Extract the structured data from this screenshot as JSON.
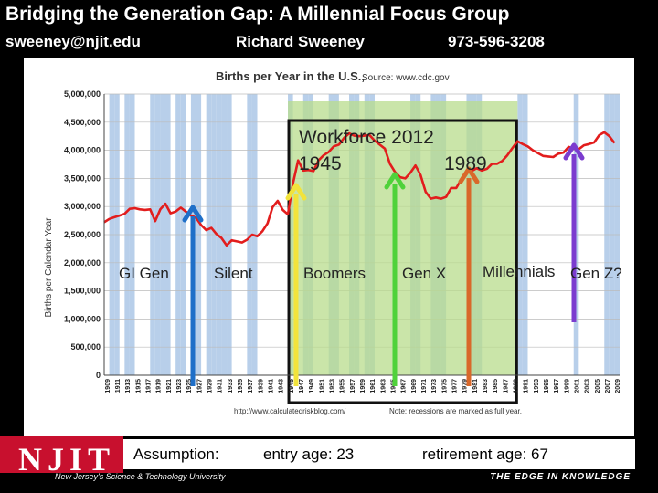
{
  "header": {
    "title": "Bridging the Generation Gap: A Millennial Focus Group",
    "email": "sweeney@njit.edu",
    "name": "Richard Sweeney",
    "phone": "973-596-3208"
  },
  "chart_data": {
    "type": "line",
    "title": "Births per Year in the U.S.,",
    "source": "Source: www.cdc.gov",
    "ylabel": "Births per Calendar Year",
    "xlabel": "",
    "ylim": [
      0,
      5000000
    ],
    "yticks": [
      "0",
      "500,000",
      "1,000,000",
      "1,500,000",
      "2,000,000",
      "2,500,000",
      "3,000,000",
      "3,500,000",
      "4,000,000",
      "4,500,000",
      "5,000,000"
    ],
    "xticks": [
      "1909",
      "1911",
      "1913",
      "1915",
      "1917",
      "1919",
      "1921",
      "1923",
      "1925",
      "1927",
      "1929",
      "1931",
      "1933",
      "1935",
      "1937",
      "1939",
      "1941",
      "1943",
      "1945",
      "1947",
      "1949",
      "1951",
      "1953",
      "1955",
      "1957",
      "1959",
      "1961",
      "1963",
      "1965",
      "1967",
      "1969",
      "1971",
      "1973",
      "1975",
      "1977",
      "1979",
      "1981",
      "1983",
      "1985",
      "1987",
      "1989",
      "1991",
      "1993",
      "1995",
      "1997",
      "1999",
      "2001",
      "2003",
      "2005",
      "2007",
      "2009"
    ],
    "footnote_left": "http://www.calculatedriskblog.com/",
    "footnote_right": "Note: recessions are marked as full year.",
    "grid": true,
    "series": [
      {
        "color": "#e21d1d",
        "x": [
          1909,
          1910,
          1911,
          1912,
          1913,
          1914,
          1915,
          1916,
          1917,
          1918,
          1919,
          1920,
          1921,
          1922,
          1923,
          1924,
          1925,
          1926,
          1927,
          1928,
          1929,
          1930,
          1931,
          1932,
          1933,
          1934,
          1935,
          1936,
          1937,
          1938,
          1939,
          1940,
          1941,
          1942,
          1943,
          1944,
          1945,
          1946,
          1947,
          1948,
          1949,
          1950,
          1951,
          1952,
          1953,
          1954,
          1955,
          1956,
          1957,
          1958,
          1959,
          1960,
          1961,
          1962,
          1963,
          1964,
          1965,
          1966,
          1967,
          1968,
          1969,
          1970,
          1971,
          1972,
          1973,
          1974,
          1975,
          1976,
          1977,
          1978,
          1979,
          1980,
          1981,
          1982,
          1983,
          1984,
          1985,
          1986,
          1987,
          1988,
          1989,
          1990,
          1991,
          1992,
          1993,
          1994,
          1995,
          1996,
          1997,
          1998,
          1999,
          2000,
          2001,
          2002,
          2003,
          2004,
          2005,
          2006,
          2007,
          2008,
          2009
        ],
        "values": [
          2720000,
          2780000,
          2810000,
          2840000,
          2870000,
          2960000,
          2970000,
          2950000,
          2940000,
          2950000,
          2740000,
          2950000,
          3050000,
          2880000,
          2910000,
          2980000,
          2910000,
          2840000,
          2800000,
          2670000,
          2580000,
          2620000,
          2510000,
          2440000,
          2310000,
          2400000,
          2380000,
          2360000,
          2410000,
          2500000,
          2470000,
          2560000,
          2700000,
          2990000,
          3100000,
          2940000,
          2860000,
          3410000,
          3820000,
          3640000,
          3650000,
          3630000,
          3820000,
          3910000,
          3970000,
          4070000,
          4100000,
          4220000,
          4300000,
          4260000,
          4250000,
          4260000,
          4270000,
          4170000,
          4100000,
          4030000,
          3760000,
          3610000,
          3520000,
          3500000,
          3600000,
          3730000,
          3560000,
          3260000,
          3140000,
          3160000,
          3140000,
          3170000,
          3330000,
          3330000,
          3490000,
          3610000,
          3630000,
          3680000,
          3640000,
          3670000,
          3760000,
          3760000,
          3810000,
          3910000,
          4040000,
          4160000,
          4110000,
          4070000,
          4000000,
          3950000,
          3900000,
          3890000,
          3880000,
          3940000,
          3960000,
          4060000,
          4030000,
          4020000,
          4090000,
          4110000,
          4140000,
          4270000,
          4320000,
          4250000,
          4130000
        ]
      }
    ],
    "recessions": [
      1910,
      1911,
      1913,
      1914,
      1918,
      1919,
      1920,
      1921,
      1923,
      1924,
      1926,
      1927,
      1929,
      1930,
      1931,
      1932,
      1933,
      1937,
      1938,
      1945,
      1948,
      1949,
      1953,
      1954,
      1957,
      1958,
      1960,
      1961,
      1969,
      1970,
      1973,
      1974,
      1975,
      1980,
      1981,
      1982,
      1990,
      1991,
      2001,
      2007,
      2008,
      2009
    ]
  },
  "overlay": {
    "workforce_title": "Workforce 2012",
    "year_start": "1945",
    "year_end": "1989",
    "generations": [
      {
        "label": "GI Gen",
        "color": "#1f6fc8"
      },
      {
        "label": "Silent",
        "color": "#1f6fc8"
      },
      {
        "label": "Boomers",
        "color": "#f2e33b"
      },
      {
        "label": "Gen X",
        "color": "#4fd23a"
      },
      {
        "label": "Millennials",
        "color": "#d9682a"
      },
      {
        "label": "Gen Z?",
        "color": "#7b3ccf"
      }
    ]
  },
  "footer": {
    "logo": "NJIT",
    "university": "New Jersey's Science & Technology University",
    "tagline": "THE EDGE IN KNOWLEDGE",
    "assumption": "Assumption:",
    "entry_age": "entry age: 23",
    "retirement_age": "retirement age: 67"
  }
}
